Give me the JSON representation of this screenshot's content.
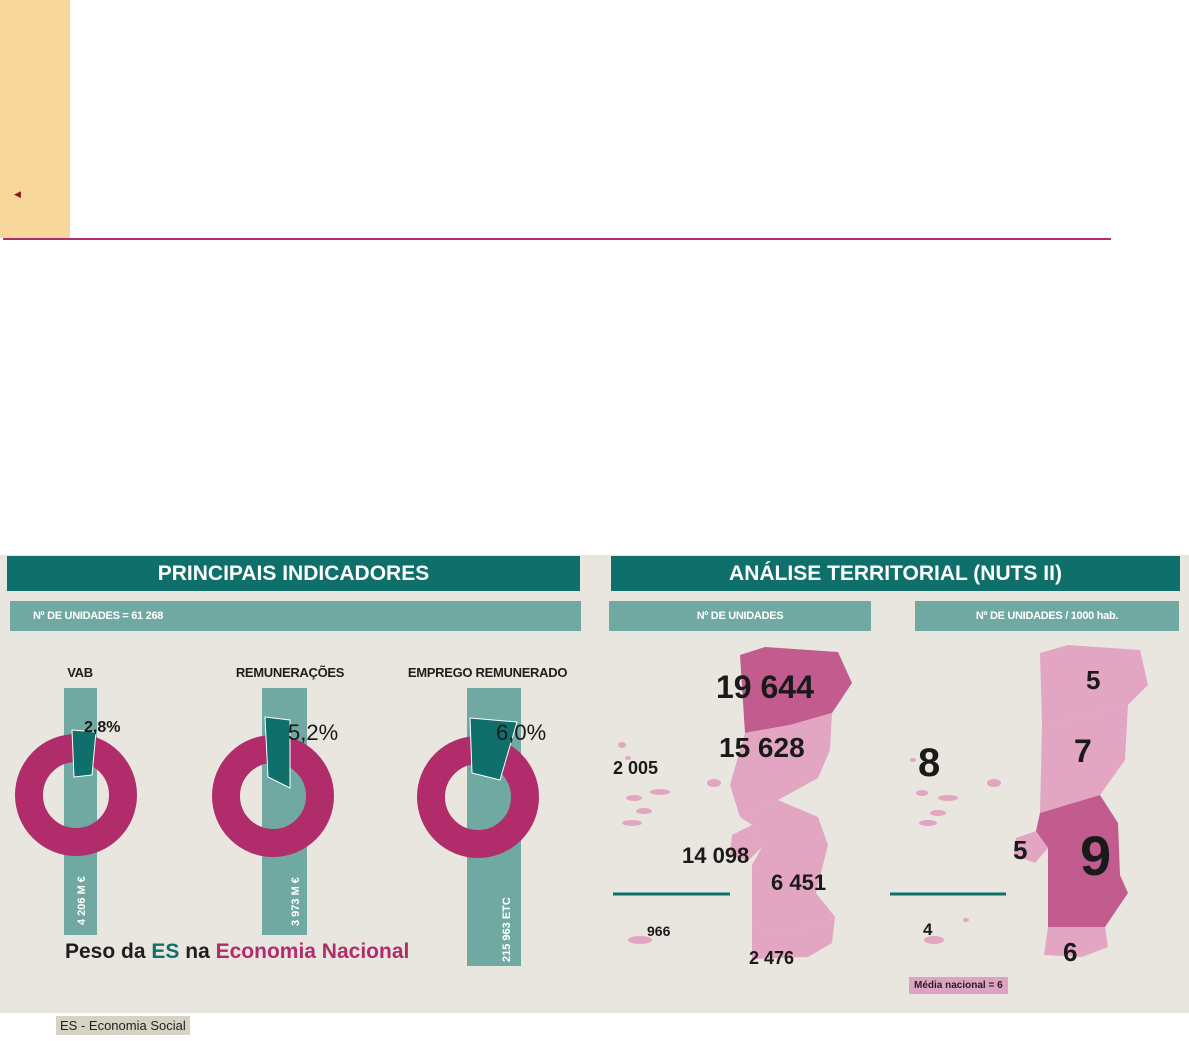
{
  "header": {
    "sidebar_color": "#f7d89a",
    "rule_color": "#b02c6a"
  },
  "principais": {
    "title": "PRINCIPAIS INDICADORES",
    "unidades_label": "Nº DE UNIDADES = 61 268",
    "indicators": [
      {
        "label": "VAB",
        "percent_text": "2,8%",
        "share": 0.028,
        "vertical_value": "4 206 M €"
      },
      {
        "label": "REMUNERAÇÕES",
        "percent_text": "5,2%",
        "share": 0.052,
        "vertical_value": "3 973 M €"
      },
      {
        "label": "EMPREGO REMUNERADO",
        "percent_text": "6,0%",
        "share": 0.06,
        "vertical_value": "215 963 ETC"
      }
    ],
    "peso": {
      "prefix": "Peso da",
      "es": "ES",
      "na": "na",
      "economia": "Economia Nacional"
    }
  },
  "territorial": {
    "title": "ANÁLISE TERRITORIAL (NUTS II)",
    "unidades_header": "Nº DE UNIDADES",
    "per_hab_header": "Nº DE UNIDADES / 1000 hab.",
    "unidades": {
      "norte": "19 644",
      "centro": "15 628",
      "lisboa": "14 098",
      "alentejo": "6 451",
      "algarve": "2 476",
      "acores": "2 005",
      "madeira": "966"
    },
    "per_hab": {
      "norte": "5",
      "centro": "7",
      "lisboa": "5",
      "alentejo": "9",
      "algarve": "6",
      "acores": "8",
      "madeira": "4"
    },
    "media": "Média nacional = 6"
  },
  "footnote": "ES - Economia Social",
  "colors": {
    "teal": "#0e6f6b",
    "light_teal": "#6fa9a1",
    "magenta": "#b02c6a",
    "pink_light": "#e2a6c2",
    "pink_mid": "#d487ad",
    "pink_dark": "#c25c8e",
    "background": "#e8e6df"
  }
}
